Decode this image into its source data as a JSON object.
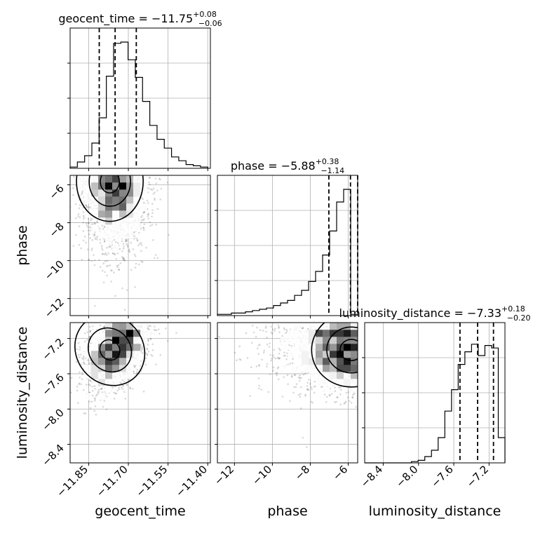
{
  "chart_data": {
    "type": "corner",
    "parameters": [
      {
        "name": "geocent_time",
        "median": -11.75,
        "plus": 0.08,
        "minus": 0.06
      },
      {
        "name": "phase",
        "median": -5.88,
        "plus": 0.38,
        "minus": 1.14
      },
      {
        "name": "luminosity_distance",
        "median": -7.33,
        "plus": 0.18,
        "minus": 0.2
      }
    ],
    "titles": [
      {
        "main": "geocent_time = −11.75",
        "sup": "+0.08",
        "sub": "−0.06"
      },
      {
        "main": "phase = −5.88",
        "sup": "+0.38",
        "sub": "−1.14"
      },
      {
        "main": "luminosity_distance = −7.33",
        "sup": "+0.18",
        "sub": "−0.20"
      }
    ],
    "xlabels": [
      "geocent_time",
      "phase",
      "luminosity_distance"
    ],
    "ylabels": [
      "phase",
      "luminosity_distance"
    ],
    "ranges": [
      [
        -11.92,
        -11.39
      ],
      [
        -12.9,
        -5.5
      ],
      [
        -8.61,
        -7.02
      ]
    ],
    "ticks": {
      "geocent_time": {
        "values": [
          -11.85,
          -11.7,
          -11.55,
          -11.4
        ],
        "labels": [
          "−11.85",
          "−11.70",
          "−11.55",
          "−11.40"
        ]
      },
      "phase": {
        "values": [
          -12,
          -10,
          -8,
          -6
        ],
        "labels": [
          "−12",
          "−10",
          "−8",
          "−6"
        ]
      },
      "luminosity_distance": {
        "values": [
          -8.4,
          -8.0,
          -7.6,
          -7.2
        ],
        "labels": [
          "−8.4",
          "−8.0",
          "−7.6",
          "−7.2"
        ]
      }
    },
    "hist_bin_heights": {
      "geocent_time": [
        0.01,
        0.05,
        0.1,
        0.2,
        0.4,
        0.73,
        0.99,
        1.0,
        0.86,
        0.72,
        0.53,
        0.34,
        0.23,
        0.16,
        0.09,
        0.06,
        0.03,
        0.02,
        0.01
      ],
      "phase": [
        0.01,
        0.01,
        0.02,
        0.02,
        0.03,
        0.04,
        0.05,
        0.06,
        0.08,
        0.1,
        0.12,
        0.16,
        0.2,
        0.27,
        0.35,
        0.48,
        0.67,
        0.9,
        1.0,
        0.01
      ],
      "luminosity_distance": [
        0.0,
        0.0,
        0.0,
        0.0,
        0.0,
        0.0,
        0.0,
        0.01,
        0.02,
        0.05,
        0.1,
        0.2,
        0.41,
        0.58,
        0.78,
        0.88,
        0.94,
        0.85,
        0.93,
        0.91,
        0.2
      ]
    },
    "grid": true
  }
}
